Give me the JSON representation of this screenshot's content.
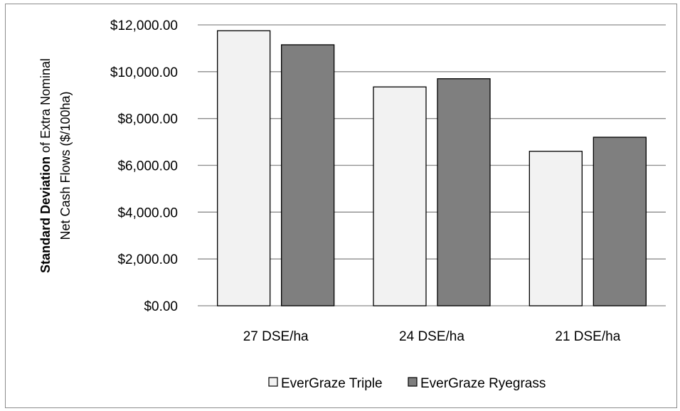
{
  "chart_data": {
    "type": "bar",
    "categories": [
      "27 DSE/ha",
      "24 DSE/ha",
      "21 DSE/ha"
    ],
    "series": [
      {
        "name": "EverGraze Triple",
        "values": [
          11750,
          9350,
          6600
        ],
        "color": "#f2f2f2"
      },
      {
        "name": "EverGraze Ryegrass",
        "values": [
          11150,
          9700,
          7200
        ],
        "color": "#7f7f7f"
      }
    ],
    "ylabel_bold": "Standard Deviation",
    "ylabel_rest_line1": " of Extra Nominal",
    "ylabel_line2": "Net Cash Flows ($/100ha)",
    "ylim": [
      0,
      12000
    ],
    "yticks": [
      0,
      2000,
      4000,
      6000,
      8000,
      10000,
      12000
    ],
    "ytick_labels": [
      "$0.00",
      "$2,000.00",
      "$4,000.00",
      "$6,000.00",
      "$8,000.00",
      "$10,000.00",
      "$12,000.00"
    ],
    "grid": true,
    "legend_position": "bottom",
    "gridline_color": "#8c8c8c",
    "bar_stroke": "#000000"
  }
}
